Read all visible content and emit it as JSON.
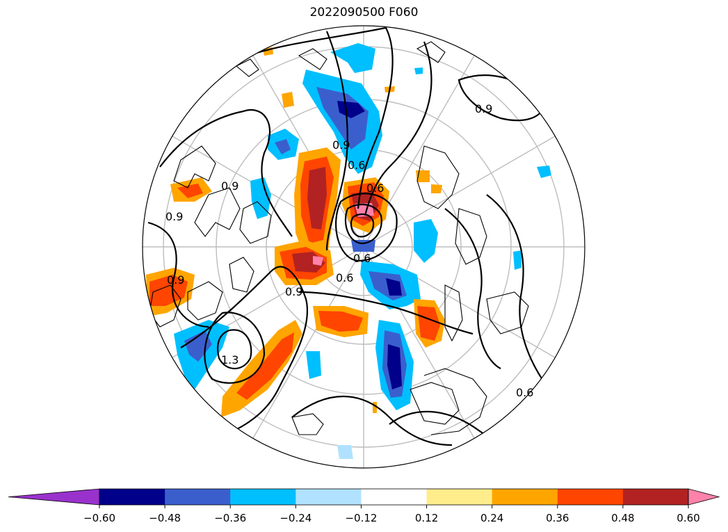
{
  "title": "2022090500 F060",
  "map": {
    "projection": "north-polar-stereographic",
    "coastlines": true,
    "graticule": true,
    "contour_labels": [
      "0.9",
      "0.9",
      "0.6",
      "0.6",
      "0.6",
      "0.6",
      "0.9",
      "0.9",
      "0.9",
      "0.6",
      "1.3",
      "0.9"
    ]
  },
  "colorbar": {
    "extend": "both",
    "ticks": [
      "−0.60",
      "−0.48",
      "−0.36",
      "−0.24",
      "−0.12",
      "0.12",
      "0.24",
      "0.36",
      "0.48",
      "0.60"
    ],
    "colors": [
      "#9932cc",
      "#00008b",
      "#3a5fcd",
      "#00bfff",
      "#b0e2ff",
      "#ffffff",
      "#ffec8b",
      "#ffa500",
      "#ff4500",
      "#b22222",
      "#ff82ab"
    ]
  }
}
